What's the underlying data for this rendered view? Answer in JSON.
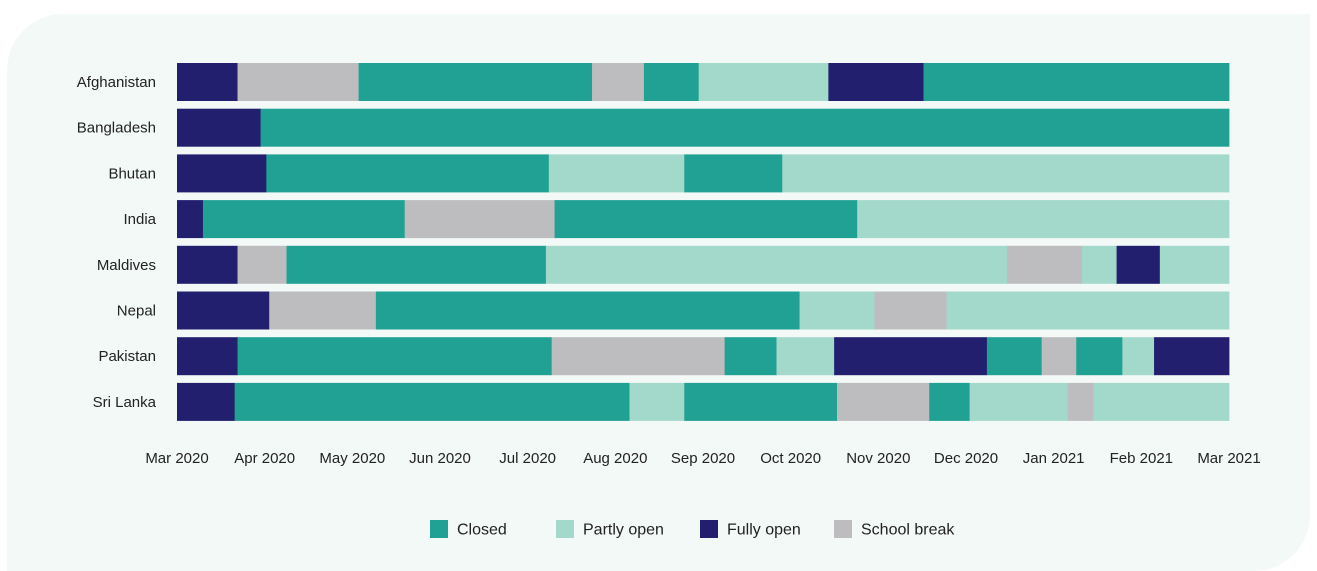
{
  "chart_data": {
    "type": "bar",
    "orientation": "horizontal",
    "stacked": true,
    "categories": [
      "Afghanistan",
      "Bangladesh",
      "Bhutan",
      "India",
      "Maldives",
      "Nepal",
      "Pakistan",
      "Sri Lanka"
    ],
    "x_ticks": [
      "Mar 2020",
      "Apr 2020",
      "May 2020",
      "Jun 2020",
      "Jul 2020",
      "Aug 2020",
      "Sep 2020",
      "Oct 2020",
      "Nov 2020",
      "Dec 2020",
      "Jan 2021",
      "Feb 2021",
      "Mar 2021"
    ],
    "xlim": [
      "Mar 2020",
      "Mar 2021"
    ],
    "legend_position": "bottom",
    "grid": false,
    "statuses": [
      {
        "key": "closed",
        "name": "Closed",
        "color": "#21a193"
      },
      {
        "key": "partly",
        "name": "Partly open",
        "color": "#a3d9cb"
      },
      {
        "key": "fully",
        "name": "Fully open",
        "color": "#221f6e"
      },
      {
        "key": "break",
        "name": "School break",
        "color": "#bdbdc0"
      }
    ],
    "series": [
      {
        "country": "Afghanistan",
        "segments": [
          {
            "status": "fully",
            "start": "2020-03-01",
            "end": "2020-03-22"
          },
          {
            "status": "break",
            "start": "2020-03-22",
            "end": "2020-05-03"
          },
          {
            "status": "closed",
            "start": "2020-05-03",
            "end": "2020-07-23"
          },
          {
            "status": "break",
            "start": "2020-07-23",
            "end": "2020-08-10"
          },
          {
            "status": "closed",
            "start": "2020-08-10",
            "end": "2020-08-29"
          },
          {
            "status": "partly",
            "start": "2020-08-29",
            "end": "2020-10-13"
          },
          {
            "status": "fully",
            "start": "2020-10-13",
            "end": "2020-11-15"
          },
          {
            "status": "closed",
            "start": "2020-11-15",
            "end": "2021-03-01"
          }
        ]
      },
      {
        "country": "Bangladesh",
        "segments": [
          {
            "status": "fully",
            "start": "2020-03-01",
            "end": "2020-03-30"
          },
          {
            "status": "closed",
            "start": "2020-03-30",
            "end": "2021-03-01"
          }
        ]
      },
      {
        "country": "Bhutan",
        "segments": [
          {
            "status": "fully",
            "start": "2020-03-01",
            "end": "2020-04-01"
          },
          {
            "status": "closed",
            "start": "2020-04-01",
            "end": "2020-07-08"
          },
          {
            "status": "partly",
            "start": "2020-07-08",
            "end": "2020-08-24"
          },
          {
            "status": "closed",
            "start": "2020-08-24",
            "end": "2020-09-27"
          },
          {
            "status": "partly",
            "start": "2020-09-27",
            "end": "2021-03-01"
          }
        ]
      },
      {
        "country": "India",
        "segments": [
          {
            "status": "fully",
            "start": "2020-03-01",
            "end": "2020-03-10"
          },
          {
            "status": "closed",
            "start": "2020-03-10",
            "end": "2020-05-19"
          },
          {
            "status": "break",
            "start": "2020-05-19",
            "end": "2020-07-10"
          },
          {
            "status": "closed",
            "start": "2020-07-10",
            "end": "2020-10-23"
          },
          {
            "status": "partly",
            "start": "2020-10-23",
            "end": "2021-03-01"
          }
        ]
      },
      {
        "country": "Maldives",
        "segments": [
          {
            "status": "fully",
            "start": "2020-03-01",
            "end": "2020-03-22"
          },
          {
            "status": "break",
            "start": "2020-03-22",
            "end": "2020-04-08"
          },
          {
            "status": "closed",
            "start": "2020-04-08",
            "end": "2020-07-07"
          },
          {
            "status": "partly",
            "start": "2020-07-07",
            "end": "2020-12-14"
          },
          {
            "status": "break",
            "start": "2020-12-14",
            "end": "2021-01-09"
          },
          {
            "status": "partly",
            "start": "2021-01-09",
            "end": "2021-01-21"
          },
          {
            "status": "fully",
            "start": "2021-01-21",
            "end": "2021-02-05"
          },
          {
            "status": "partly",
            "start": "2021-02-05",
            "end": "2021-03-01"
          }
        ]
      },
      {
        "country": "Nepal",
        "segments": [
          {
            "status": "fully",
            "start": "2020-03-01",
            "end": "2020-04-02"
          },
          {
            "status": "break",
            "start": "2020-04-02",
            "end": "2020-05-09"
          },
          {
            "status": "closed",
            "start": "2020-05-09",
            "end": "2020-10-03"
          },
          {
            "status": "partly",
            "start": "2020-10-03",
            "end": "2020-10-29"
          },
          {
            "status": "break",
            "start": "2020-10-29",
            "end": "2020-11-23"
          },
          {
            "status": "partly",
            "start": "2020-11-23",
            "end": "2021-03-01"
          }
        ]
      },
      {
        "country": "Pakistan",
        "segments": [
          {
            "status": "fully",
            "start": "2020-03-01",
            "end": "2020-03-22"
          },
          {
            "status": "closed",
            "start": "2020-03-22",
            "end": "2020-07-09"
          },
          {
            "status": "break",
            "start": "2020-07-09",
            "end": "2020-09-07"
          },
          {
            "status": "closed",
            "start": "2020-09-07",
            "end": "2020-09-25"
          },
          {
            "status": "partly",
            "start": "2020-09-25",
            "end": "2020-10-15"
          },
          {
            "status": "fully",
            "start": "2020-10-15",
            "end": "2020-12-07"
          },
          {
            "status": "closed",
            "start": "2020-12-07",
            "end": "2020-12-26"
          },
          {
            "status": "break",
            "start": "2020-12-26",
            "end": "2021-01-07"
          },
          {
            "status": "closed",
            "start": "2021-01-07",
            "end": "2021-01-23"
          },
          {
            "status": "partly",
            "start": "2021-01-23",
            "end": "2021-02-03"
          },
          {
            "status": "fully",
            "start": "2021-02-03",
            "end": "2021-03-01"
          }
        ]
      },
      {
        "country": "Sri Lanka",
        "segments": [
          {
            "status": "fully",
            "start": "2020-03-01",
            "end": "2020-03-21"
          },
          {
            "status": "closed",
            "start": "2020-03-21",
            "end": "2020-08-05"
          },
          {
            "status": "partly",
            "start": "2020-08-05",
            "end": "2020-08-24"
          },
          {
            "status": "closed",
            "start": "2020-08-24",
            "end": "2020-10-16"
          },
          {
            "status": "break",
            "start": "2020-10-16",
            "end": "2020-11-17"
          },
          {
            "status": "closed",
            "start": "2020-11-17",
            "end": "2020-12-01"
          },
          {
            "status": "partly",
            "start": "2020-12-01",
            "end": "2021-01-04"
          },
          {
            "status": "break",
            "start": "2021-01-04",
            "end": "2021-01-13"
          },
          {
            "status": "partly",
            "start": "2021-01-13",
            "end": "2021-03-01"
          }
        ]
      }
    ]
  }
}
